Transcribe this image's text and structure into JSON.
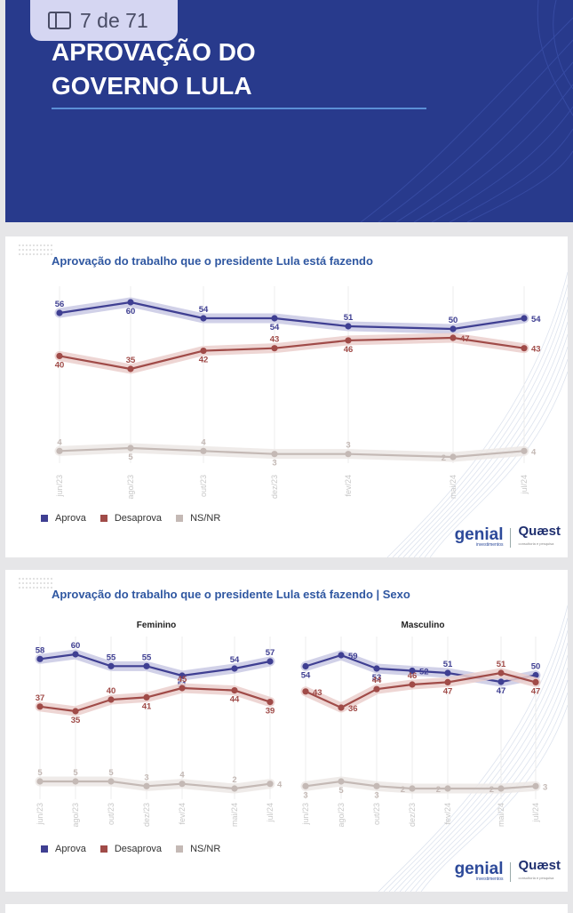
{
  "badge": {
    "label": "7 de 71"
  },
  "banner": {
    "title_line1": "APROVAÇÃO DO",
    "title_line2": "GOVERNO LULA"
  },
  "colors": {
    "aprova": "#3f3f92",
    "desaprova": "#a04b48",
    "nsnr": "#c4b9b5",
    "aprova_band": "#c9c9e4",
    "desaprova_band": "#ebcfcd",
    "nsnr_band": "#ece7e5"
  },
  "legend": {
    "aprova": "Aprova",
    "desaprova": "Desaprova",
    "nsnr": "NS/NR"
  },
  "logos": {
    "genial": "genial",
    "genial_sub": "investimentos",
    "quaest": "Quæst",
    "quaest_sub": "consultoria e pesquisa"
  },
  "chart_data": [
    {
      "type": "line",
      "title": "Aprovação do trabalho que o presidente Lula está fazendo",
      "categories": [
        "jun/23",
        "ago/23",
        "out/23",
        "dez/23",
        "fev/24",
        "mai/24",
        "jul/24"
      ],
      "series": [
        {
          "name": "Aprova",
          "values": [
            56,
            60,
            54,
            54,
            51,
            50,
            54
          ]
        },
        {
          "name": "Desaprova",
          "values": [
            40,
            35,
            42,
            43,
            46,
            47,
            43
          ]
        },
        {
          "name": "NS/NR",
          "values": [
            4,
            5,
            4,
            3,
            3,
            2,
            4
          ]
        }
      ]
    },
    {
      "type": "line",
      "title": "Aprovação do trabalho que o presidente Lula está fazendo | Sexo",
      "panels": [
        {
          "name": "Feminino",
          "categories": [
            "jun/23",
            "ago/23",
            "out/23",
            "dez/23",
            "fev/24",
            "mai/24",
            "jul/24"
          ],
          "series": [
            {
              "name": "Aprova",
              "values": [
                58,
                60,
                55,
                55,
                51,
                54,
                57
              ]
            },
            {
              "name": "Desaprova",
              "values": [
                37,
                35,
                40,
                41,
                45,
                44,
                39
              ]
            },
            {
              "name": "NS/NR",
              "values": [
                5,
                5,
                5,
                3,
                4,
                2,
                4
              ]
            }
          ]
        },
        {
          "name": "Masculino",
          "categories": [
            "jun/23",
            "ago/23",
            "out/23",
            "dez/23",
            "fev/24",
            "mai/24",
            "jul/24"
          ],
          "series": [
            {
              "name": "Aprova",
              "values": [
                54,
                59,
                53,
                52,
                51,
                47,
                50
              ]
            },
            {
              "name": "Desaprova",
              "values": [
                43,
                36,
                44,
                46,
                47,
                51,
                47
              ]
            },
            {
              "name": "NS/NR",
              "values": [
                3,
                5,
                3,
                2,
                2,
                2,
                3
              ]
            }
          ]
        }
      ]
    }
  ]
}
